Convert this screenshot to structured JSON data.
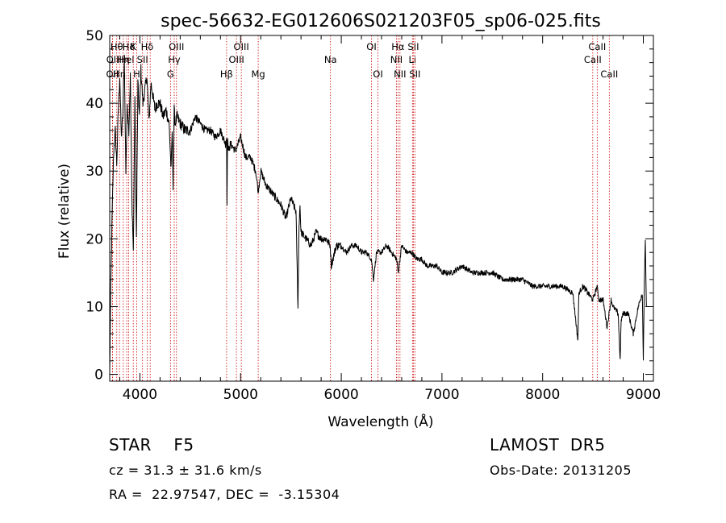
{
  "chart_data": {
    "type": "line",
    "title": "spec-56632-EG012606S021203F05_sp06-025.fits",
    "xlabel": "Wavelength (Å)",
    "ylabel": "Flux (relative)",
    "xlim": [
      3700,
      9100
    ],
    "ylim": [
      -1,
      50
    ],
    "xticks": [
      4000,
      5000,
      6000,
      7000,
      8000,
      9000
    ],
    "yticks": [
      0,
      10,
      20,
      30,
      40,
      50
    ],
    "series": [
      {
        "x": [
          3700,
          3710,
          3725,
          3740,
          3755,
          3770,
          3785,
          3800,
          3815,
          3830,
          3845,
          3860,
          3875,
          3890,
          3905,
          3920,
          3935,
          3950,
          3965,
          3980,
          3995,
          4010,
          4030,
          4050,
          4070,
          4090,
          4110,
          4130,
          4150,
          4170,
          4200,
          4230,
          4260,
          4290,
          4310,
          4320,
          4330,
          4340,
          4350,
          4370,
          4400,
          4450,
          4500,
          4550,
          4600,
          4650,
          4700,
          4750,
          4800,
          4850,
          4860,
          4865,
          4870,
          4880,
          4900,
          4950,
          5000,
          5050,
          5100,
          5150,
          5175,
          5200,
          5250,
          5300,
          5350,
          5400,
          5450,
          5500,
          5550,
          5570,
          5580,
          5590,
          5600,
          5650,
          5700,
          5750,
          5800,
          5850,
          5890,
          5900,
          5950,
          6000,
          6050,
          6100,
          6150,
          6200,
          6250,
          6300,
          6320,
          6350,
          6400,
          6450,
          6500,
          6550,
          6565,
          6600,
          6650,
          6700,
          6750,
          6800,
          6850,
          6900,
          6950,
          7000,
          7100,
          7200,
          7300,
          7400,
          7500,
          7600,
          7700,
          7800,
          7900,
          8000,
          8100,
          8200,
          8300,
          8350,
          8360,
          8400,
          8450,
          8500,
          8540,
          8560,
          8600,
          8640,
          8680,
          8700,
          8750,
          8770,
          8780,
          8800,
          8850,
          8900,
          8950,
          8990,
          9000,
          9010,
          9020,
          9030
        ],
        "y": [
          0,
          12,
          24,
          33,
          36,
          31,
          39,
          44,
          35,
          38,
          47,
          30,
          40,
          36,
          44,
          26,
          18,
          41,
          20,
          43,
          38,
          45,
          40,
          42,
          44,
          37,
          43,
          41,
          39,
          40,
          40,
          38,
          39,
          37,
          30,
          36,
          28,
          39,
          37,
          38,
          37,
          36,
          36,
          38,
          37,
          36,
          36,
          35,
          36,
          34,
          35,
          25,
          35,
          33,
          34,
          33,
          35,
          32,
          32,
          30,
          27,
          30,
          28,
          27,
          26,
          25,
          23,
          26,
          24,
          10,
          22,
          25,
          21,
          20,
          19,
          21,
          20,
          20,
          19,
          16,
          19,
          19,
          18,
          19,
          19,
          18,
          18,
          17,
          14,
          18,
          18,
          19,
          18,
          17,
          15,
          19,
          18,
          18,
          17,
          17,
          16,
          16,
          16,
          15,
          15,
          16,
          15,
          15,
          15,
          14,
          14,
          14,
          13,
          13,
          13,
          13,
          12,
          5,
          12,
          13,
          12,
          11,
          13,
          11,
          11,
          7,
          11,
          10,
          9,
          2,
          8,
          9,
          9,
          6,
          10,
          12,
          2,
          14,
          20,
          10
        ]
      }
    ],
    "line_markers": [
      {
        "x": 3727,
        "label": "OII",
        "row": 3
      },
      {
        "x": 3729,
        "label": "OII",
        "row": 2
      },
      {
        "x": 3770,
        "label": "Hθ",
        "row": 1
      },
      {
        "x": 3797,
        "label": "Hη",
        "row": 3
      },
      {
        "x": 3835,
        "label": "Hη",
        "row": 2
      },
      {
        "x": 3869,
        "label": "HeI",
        "row": 2
      },
      {
        "x": 3889,
        "label": "Hδ",
        "row": 1
      },
      {
        "x": 3934,
        "label": "K",
        "row": 1
      },
      {
        "x": 3968,
        "label": "H",
        "row": 3
      },
      {
        "x": 4026,
        "label": "SII",
        "row": 2
      },
      {
        "x": 4072,
        "label": "Hδ",
        "row": 1
      },
      {
        "x": 4102,
        "label": "",
        "row": 0
      },
      {
        "x": 4304,
        "label": "G",
        "row": 3
      },
      {
        "x": 4341,
        "label": "Hγ",
        "row": 2
      },
      {
        "x": 4363,
        "label": "OIII",
        "row": 1
      },
      {
        "x": 4861,
        "label": "Hβ",
        "row": 3
      },
      {
        "x": 4959,
        "label": "OIII",
        "row": 2
      },
      {
        "x": 5007,
        "label": "OIII",
        "row": 1
      },
      {
        "x": 5175,
        "label": "Mg",
        "row": 3
      },
      {
        "x": 5893,
        "label": "Na",
        "row": 2
      },
      {
        "x": 6300,
        "label": "OI",
        "row": 1
      },
      {
        "x": 6364,
        "label": "OI",
        "row": 3
      },
      {
        "x": 6548,
        "label": "NII",
        "row": 2
      },
      {
        "x": 6563,
        "label": "Hα",
        "row": 1
      },
      {
        "x": 6583,
        "label": "NII",
        "row": 3
      },
      {
        "x": 6707,
        "label": "Li",
        "row": 2
      },
      {
        "x": 6716,
        "label": "SII",
        "row": 1
      },
      {
        "x": 6731,
        "label": "SII",
        "row": 3
      },
      {
        "x": 8498,
        "label": "CaII",
        "row": 2
      },
      {
        "x": 8542,
        "label": "CaII",
        "row": 1
      },
      {
        "x": 8662,
        "label": "CaII",
        "row": 3
      }
    ]
  },
  "info": {
    "class_line": "STAR    F5",
    "survey": "LAMOST  DR5",
    "cz": "cz = 31.3 ± 31.6 km/s",
    "obs_date": "Obs-Date: 20131205",
    "coords": "RA =  22.97547, DEC =  -3.15304"
  },
  "colors": {
    "spectrum": "#000000",
    "marker": "#cc0000"
  }
}
